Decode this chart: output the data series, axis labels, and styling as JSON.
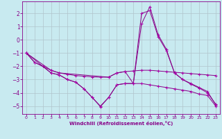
{
  "background_color": "#c8eaf0",
  "grid_color": "#b0c4cc",
  "line_color": "#880088",
  "marker_color": "#aa00aa",
  "xlabel": "Windchill (Refroidissement éolien,°C)",
  "xlabel_color": "#880088",
  "xlim": [
    -0.5,
    23.5
  ],
  "ylim": [
    -5.6,
    2.9
  ],
  "xticks": [
    0,
    1,
    2,
    3,
    4,
    5,
    6,
    7,
    8,
    9,
    10,
    11,
    12,
    13,
    14,
    15,
    16,
    17,
    18,
    19,
    20,
    21,
    22,
    23
  ],
  "yticks": [
    -5,
    -4,
    -3,
    -2,
    -1,
    0,
    1,
    2
  ],
  "series": [
    {
      "x": [
        0,
        1,
        2,
        3,
        4,
        5,
        6,
        7,
        8,
        9,
        10,
        11,
        12,
        13,
        14,
        15,
        16,
        17,
        18,
        19,
        20,
        21,
        22,
        23
      ],
      "y": [
        -1.0,
        -1.7,
        -2.0,
        -2.3,
        -2.5,
        -2.6,
        -2.7,
        -2.75,
        -2.8,
        -2.82,
        -2.82,
        -2.5,
        -2.4,
        -2.35,
        -2.3,
        -2.3,
        -2.35,
        -2.4,
        -2.45,
        -2.5,
        -2.55,
        -2.6,
        -2.65,
        -2.7
      ]
    },
    {
      "x": [
        0,
        3,
        4,
        10,
        11,
        12,
        13,
        14,
        15,
        16,
        17,
        18,
        19,
        20,
        21,
        22,
        23
      ],
      "y": [
        -1.0,
        -2.3,
        -2.5,
        -2.82,
        -2.5,
        -2.4,
        -3.3,
        1.2,
        2.5,
        0.4,
        -0.7,
        -2.5,
        -3.0,
        -3.3,
        -3.6,
        -3.9,
        -4.9
      ]
    },
    {
      "x": [
        0,
        1,
        2,
        3,
        4,
        5,
        6,
        7,
        8,
        9,
        10,
        11,
        12,
        13,
        14,
        15,
        16,
        17,
        18,
        19,
        20,
        21,
        22,
        23
      ],
      "y": [
        -1.0,
        -1.7,
        -2.0,
        -2.5,
        -2.65,
        -3.0,
        -3.2,
        -3.7,
        -4.35,
        -5.0,
        -4.35,
        -3.4,
        -3.3,
        -3.3,
        2.0,
        2.2,
        0.25,
        -0.8,
        -2.5,
        -3.0,
        -3.35,
        -3.65,
        -4.0,
        -4.85
      ]
    },
    {
      "x": [
        0,
        3,
        4,
        5,
        6,
        7,
        8,
        9,
        10,
        11,
        12,
        13,
        14,
        15,
        16,
        17,
        18,
        19,
        20,
        21,
        22,
        23
      ],
      "y": [
        -1.0,
        -2.5,
        -2.65,
        -3.0,
        -3.2,
        -3.7,
        -4.35,
        -5.05,
        -4.35,
        -3.4,
        -3.3,
        -3.3,
        -3.3,
        -3.4,
        -3.5,
        -3.6,
        -3.7,
        -3.8,
        -3.9,
        -4.1,
        -4.2,
        -5.0
      ]
    }
  ]
}
